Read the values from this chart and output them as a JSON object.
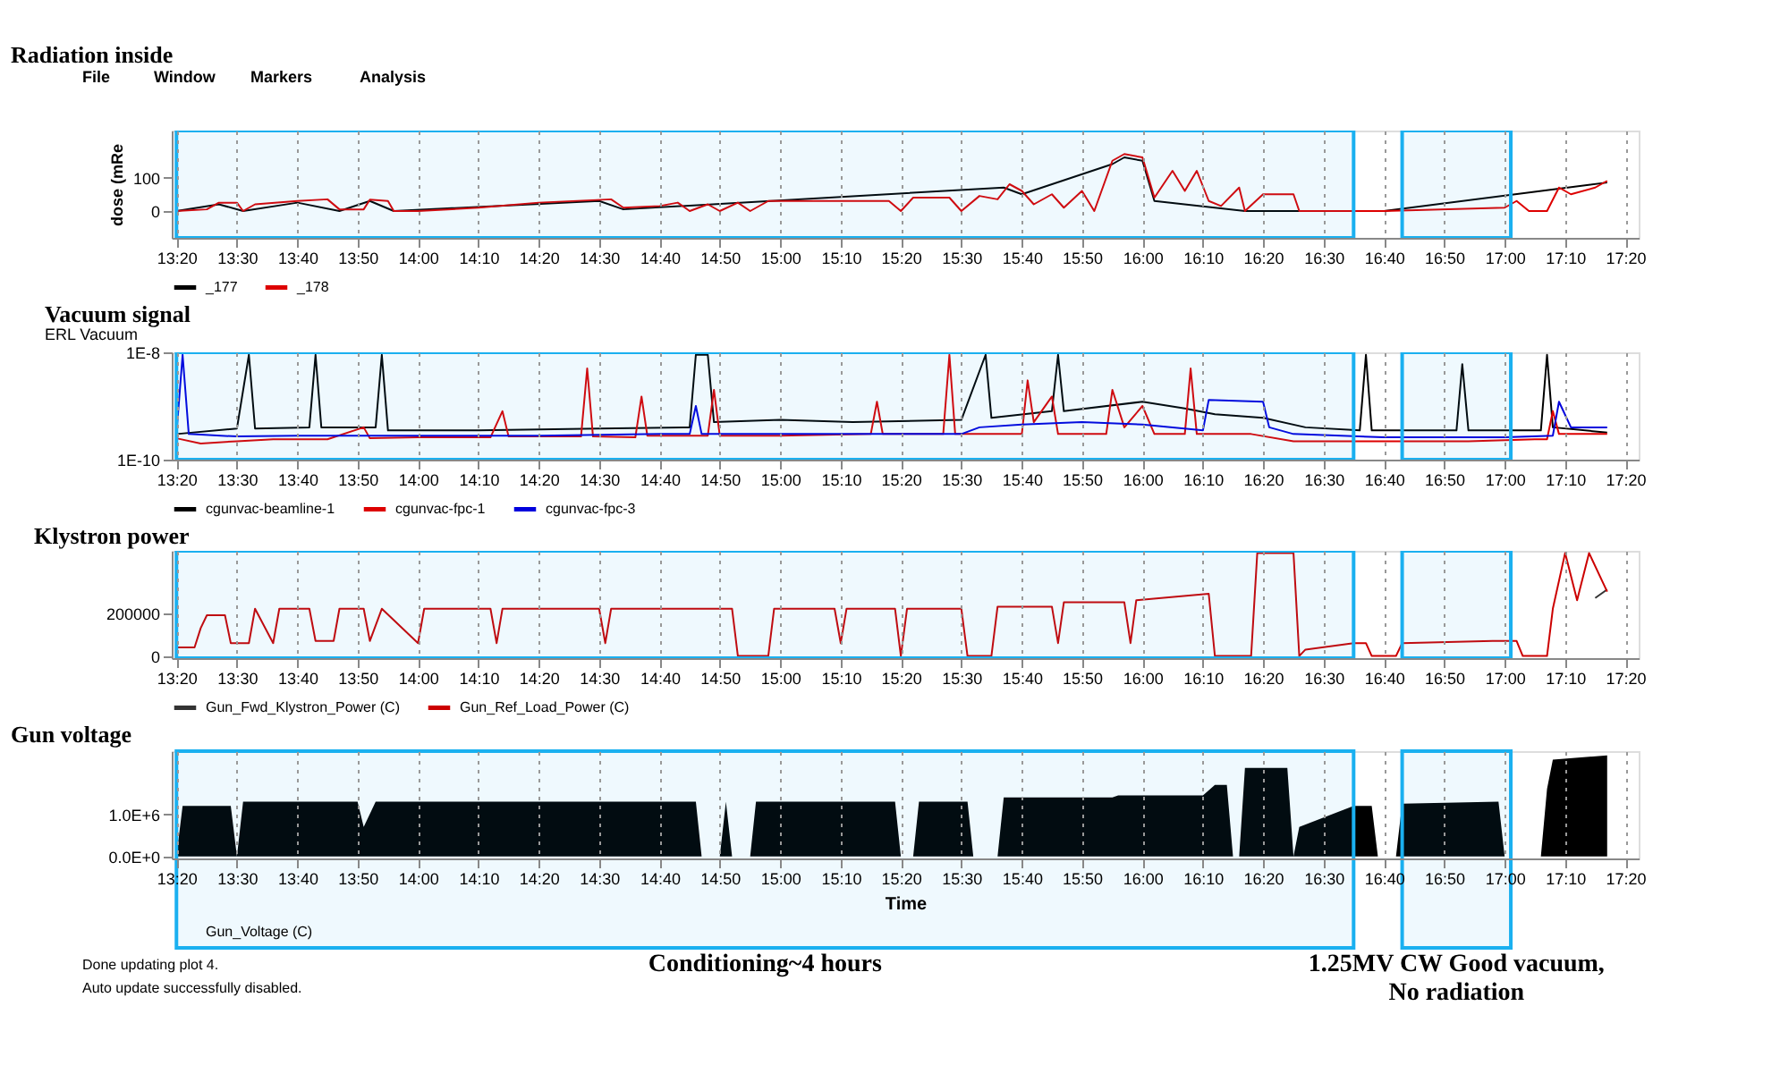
{
  "chart_data": [
    {
      "type": "line",
      "title": "Radiation inside",
      "ylabel": "dose (mRe",
      "xlim": [
        13.32,
        17.37
      ],
      "ylim": [
        -80,
        240
      ],
      "yticks": [
        0,
        100
      ],
      "grid": "x",
      "legend": "bottom",
      "annotations": [
        "File",
        "Window",
        "Markers",
        "Analysis"
      ],
      "bands": [
        {
          "axis": "x",
          "from": 13.333,
          "to": 16.583,
          "color": "#1ab0f0"
        },
        {
          "axis": "x",
          "from": 16.717,
          "to": 17.017,
          "color": "#1ab0f0"
        }
      ],
      "xticks": [
        {
          "value": 13.333,
          "label": "13:20"
        },
        {
          "value": 13.5,
          "label": "13:30"
        },
        {
          "value": 13.667,
          "label": "13:40"
        },
        {
          "value": 13.833,
          "label": "13:50"
        },
        {
          "value": 14,
          "label": "14:00"
        },
        {
          "value": 14.167,
          "label": "14:10"
        },
        {
          "value": 14.333,
          "label": "14:20"
        },
        {
          "value": 14.5,
          "label": "14:30"
        },
        {
          "value": 14.667,
          "label": "14:40"
        },
        {
          "value": 14.833,
          "label": "14:50"
        },
        {
          "value": 15,
          "label": "15:00"
        },
        {
          "value": 15.167,
          "label": "15:10"
        },
        {
          "value": 15.333,
          "label": "15:20"
        },
        {
          "value": 15.5,
          "label": "15:30"
        },
        {
          "value": 15.667,
          "label": "15:40"
        },
        {
          "value": 15.833,
          "label": "15:50"
        },
        {
          "value": 16,
          "label": "16:00"
        },
        {
          "value": 16.167,
          "label": "16:10"
        },
        {
          "value": 16.333,
          "label": "16:20"
        },
        {
          "value": 16.5,
          "label": "16:30"
        },
        {
          "value": 16.667,
          "label": "16:40"
        },
        {
          "value": 16.833,
          "label": "16:50"
        },
        {
          "value": 17,
          "label": "17:00"
        },
        {
          "value": 17.167,
          "label": "17:10"
        },
        {
          "value": 17.333,
          "label": "17:20"
        }
      ],
      "series": [
        {
          "name": "_177",
          "color": "#000000",
          "x": [
            13.333,
            13.45,
            13.517,
            13.667,
            13.783,
            13.867,
            13.933,
            14.5,
            14.567,
            15.617,
            15.667,
            15.917,
            15.95,
            16,
            16.033,
            16.283,
            16.667,
            17.283
          ],
          "values": [
            0,
            20,
            0,
            25,
            0,
            30,
            0,
            30,
            5,
            70,
            50,
            140,
            160,
            150,
            30,
            0,
            0,
            85
          ]
        },
        {
          "name": "_178",
          "color": "#dd0000",
          "x": [
            13.333,
            13.417,
            13.45,
            13.5,
            13.517,
            13.55,
            13.667,
            13.75,
            13.783,
            13.85,
            13.867,
            13.917,
            13.933,
            14,
            14.167,
            14.333,
            14.533,
            14.567,
            14.667,
            14.717,
            14.75,
            14.8,
            14.833,
            14.883,
            14.917,
            14.967,
            15.3,
            15.333,
            15.367,
            15.467,
            15.5,
            15.55,
            15.6,
            15.633,
            15.667,
            15.7,
            15.75,
            15.783,
            15.833,
            15.867,
            15.917,
            15.95,
            16,
            16.033,
            16.083,
            16.117,
            16.15,
            16.183,
            16.217,
            16.267,
            16.283,
            16.333,
            16.417,
            16.433,
            16.667,
            17,
            17.033,
            17.067,
            17.117,
            17.15,
            17.183,
            17.25,
            17.283
          ],
          "values": [
            0,
            5,
            25,
            25,
            0,
            20,
            30,
            35,
            5,
            5,
            34,
            30,
            0,
            0,
            10,
            25,
            35,
            10,
            15,
            25,
            0,
            20,
            0,
            25,
            0,
            30,
            30,
            0,
            40,
            40,
            0,
            45,
            35,
            80,
            60,
            20,
            50,
            10,
            60,
            0,
            150,
            170,
            160,
            40,
            120,
            60,
            120,
            30,
            15,
            70,
            0,
            50,
            50,
            0,
            0,
            10,
            30,
            0,
            0,
            70,
            50,
            70,
            90
          ]
        }
      ]
    },
    {
      "type": "line",
      "title": "Vacuum  signal",
      "subtitle": "ERL Vacuum",
      "log": true,
      "xlim": [
        13.32,
        17.37
      ],
      "ylim": [
        1e-10,
        1e-08
      ],
      "yticks": [
        {
          "value": 1e-08,
          "label": "1E-8"
        },
        {
          "value": 1e-10,
          "label": "1E-10"
        }
      ],
      "grid": "x",
      "legend": "bottom",
      "bands": [
        {
          "axis": "x",
          "from": 13.333,
          "to": 16.583,
          "color": "#1ab0f0"
        },
        {
          "axis": "x",
          "from": 16.717,
          "to": 17.017,
          "color": "#1ab0f0"
        }
      ],
      "xticks": [
        {
          "value": 13.333,
          "label": "13:20"
        },
        {
          "value": 13.5,
          "label": "13:30"
        },
        {
          "value": 13.667,
          "label": "13:40"
        },
        {
          "value": 13.833,
          "label": "13:50"
        },
        {
          "value": 14,
          "label": "14:00"
        },
        {
          "value": 14.167,
          "label": "14:10"
        },
        {
          "value": 14.333,
          "label": "14:20"
        },
        {
          "value": 14.5,
          "label": "14:30"
        },
        {
          "value": 14.667,
          "label": "14:40"
        },
        {
          "value": 14.833,
          "label": "14:50"
        },
        {
          "value": 15,
          "label": "15:00"
        },
        {
          "value": 15.167,
          "label": "15:10"
        },
        {
          "value": 15.333,
          "label": "15:20"
        },
        {
          "value": 15.5,
          "label": "15:30"
        },
        {
          "value": 15.667,
          "label": "15:40"
        },
        {
          "value": 15.833,
          "label": "15:50"
        },
        {
          "value": 16,
          "label": "16:00"
        },
        {
          "value": 16.167,
          "label": "16:10"
        },
        {
          "value": 16.333,
          "label": "16:20"
        },
        {
          "value": 16.5,
          "label": "16:30"
        },
        {
          "value": 16.667,
          "label": "16:40"
        },
        {
          "value": 16.833,
          "label": "16:50"
        },
        {
          "value": 17,
          "label": "17:00"
        },
        {
          "value": 17.167,
          "label": "17:10"
        },
        {
          "value": 17.333,
          "label": "17:20"
        }
      ],
      "series": [
        {
          "name": "cgunvac-beamline-1",
          "color": "#000000",
          "x": [
            13.333,
            13.5,
            13.533,
            13.55,
            13.7,
            13.717,
            13.733,
            13.883,
            13.9,
            13.917,
            14.167,
            14.5,
            14.75,
            14.767,
            14.8,
            14.817,
            15,
            15.2,
            15.5,
            15.567,
            15.583,
            15.75,
            15.767,
            15.783,
            16,
            16.117,
            16.2,
            16.333,
            16.45,
            16.6,
            16.617,
            16.633,
            16.867,
            16.883,
            16.9,
            17.1,
            17.117,
            17.133,
            17.283
          ],
          "values": [
            3e-10,
            3.8e-10,
            9e-09,
            3.8e-10,
            4e-10,
            9e-09,
            4e-10,
            4e-10,
            9e-09,
            3.5e-10,
            3.5e-10,
            3.8e-10,
            4e-10,
            9e-09,
            9e-09,
            5e-10,
            5.5e-10,
            5e-10,
            5.5e-10,
            9e-09,
            6e-10,
            8e-10,
            9e-09,
            8e-10,
            1.2e-09,
            9e-10,
            7e-10,
            6e-10,
            4e-10,
            3.5e-10,
            9e-09,
            3.5e-10,
            3.5e-10,
            6e-09,
            3.5e-10,
            3.5e-10,
            9e-09,
            4e-10,
            3.2e-10
          ]
        },
        {
          "name": "cgunvac-fpc-1",
          "color": "#dd0000",
          "x": [
            13.333,
            13.4,
            13.5,
            13.6,
            13.75,
            13.85,
            13.867,
            14,
            14.2,
            14.233,
            14.25,
            14.45,
            14.467,
            14.483,
            14.6,
            14.617,
            14.633,
            14.8,
            14.817,
            14.833,
            15,
            15.25,
            15.267,
            15.283,
            15.45,
            15.467,
            15.483,
            15.667,
            15.683,
            15.7,
            15.75,
            15.767,
            15.9,
            15.917,
            15.95,
            16,
            16.033,
            16.117,
            16.133,
            16.15,
            16.3,
            16.417,
            16.667,
            16.9,
            17.083,
            17.117,
            17.133,
            17.15,
            17.283
          ],
          "values": [
            2.5e-10,
            2e-10,
            2.2e-10,
            2.4e-10,
            2.4e-10,
            4e-10,
            2.5e-10,
            2.6e-10,
            2.6e-10,
            8e-10,
            2.7e-10,
            2.7e-10,
            5e-09,
            2.7e-10,
            2.6e-10,
            1.5e-09,
            2.8e-10,
            2.8e-10,
            2e-09,
            2.8e-10,
            2.8e-10,
            3e-10,
            1.2e-09,
            3e-10,
            3e-10,
            9e-09,
            3e-10,
            3e-10,
            3e-09,
            5e-10,
            1.5e-09,
            3e-10,
            3e-10,
            2e-09,
            4e-10,
            1e-09,
            3e-10,
            3e-10,
            5e-09,
            3e-10,
            3e-10,
            2.2e-10,
            2.2e-10,
            2.2e-10,
            2.4e-10,
            2.4e-10,
            8e-10,
            3e-10,
            3e-10
          ]
        },
        {
          "name": "cgunvac-fpc-3",
          "color": "#0000dd",
          "x": [
            13.333,
            13.35,
            13.367,
            13.5,
            13.667,
            13.833,
            14,
            14.333,
            14.667,
            14.75,
            14.767,
            14.783,
            15,
            15.333,
            15.5,
            15.55,
            15.667,
            15.833,
            16,
            16.167,
            16.183,
            16.333,
            16.35,
            16.417,
            16.667,
            17,
            17.133,
            17.15,
            17.183,
            17.283
          ],
          "values": [
            3e-10,
            9e-09,
            3e-10,
            2.7e-10,
            2.8e-10,
            2.8e-10,
            2.8e-10,
            2.8e-10,
            3e-10,
            3e-10,
            1e-09,
            3e-10,
            3e-10,
            3e-10,
            3e-10,
            4e-10,
            4.5e-10,
            5e-10,
            4.5e-10,
            3.5e-10,
            1.3e-09,
            1.2e-09,
            4e-10,
            3e-10,
            2.6e-10,
            2.6e-10,
            2.8e-10,
            1.2e-09,
            4e-10,
            4e-10
          ]
        }
      ]
    },
    {
      "type": "line",
      "title": "Klystron power",
      "xlim": [
        13.32,
        17.37
      ],
      "ylim": [
        -10000,
        490000
      ],
      "yticks": [
        0,
        200000
      ],
      "grid": "x",
      "legend": "bottom",
      "bands": [
        {
          "axis": "x",
          "from": 13.333,
          "to": 16.583,
          "color": "#1ab0f0"
        },
        {
          "axis": "x",
          "from": 16.717,
          "to": 17.017,
          "color": "#1ab0f0"
        }
      ],
      "xticks": [
        {
          "value": 13.333,
          "label": "13:20"
        },
        {
          "value": 13.5,
          "label": "13:30"
        },
        {
          "value": 13.667,
          "label": "13:40"
        },
        {
          "value": 13.833,
          "label": "13:50"
        },
        {
          "value": 14,
          "label": "14:00"
        },
        {
          "value": 14.167,
          "label": "14:10"
        },
        {
          "value": 14.333,
          "label": "14:20"
        },
        {
          "value": 14.5,
          "label": "14:30"
        },
        {
          "value": 14.667,
          "label": "14:40"
        },
        {
          "value": 14.833,
          "label": "14:50"
        },
        {
          "value": 15,
          "label": "15:00"
        },
        {
          "value": 15.167,
          "label": "15:10"
        },
        {
          "value": 15.333,
          "label": "15:20"
        },
        {
          "value": 15.5,
          "label": "15:30"
        },
        {
          "value": 15.667,
          "label": "15:40"
        },
        {
          "value": 15.833,
          "label": "15:50"
        },
        {
          "value": 16,
          "label": "16:00"
        },
        {
          "value": 16.167,
          "label": "16:10"
        },
        {
          "value": 16.333,
          "label": "16:20"
        },
        {
          "value": 16.5,
          "label": "16:30"
        },
        {
          "value": 16.667,
          "label": "16:40"
        },
        {
          "value": 16.833,
          "label": "16:50"
        },
        {
          "value": 17,
          "label": "17:00"
        },
        {
          "value": 17.167,
          "label": "17:10"
        },
        {
          "value": 17.333,
          "label": "17:20"
        }
      ],
      "series": [
        {
          "name": "Gun_Fwd_Klystron_Power (C)",
          "color": "#333333",
          "x": [
            17.25,
            17.283
          ],
          "values": [
            270000,
            310000
          ]
        },
        {
          "name": "Gun_Ref_Load_Power (C)",
          "color": "#cc0000",
          "x": [
            13.333,
            13.383,
            13.4,
            13.417,
            13.467,
            13.483,
            13.533,
            13.55,
            13.6,
            13.617,
            13.7,
            13.717,
            13.767,
            13.783,
            13.85,
            13.867,
            13.9,
            14,
            14.017,
            14.2,
            14.217,
            14.233,
            14.5,
            14.517,
            14.533,
            14.867,
            14.883,
            14.967,
            14.983,
            15.15,
            15.167,
            15.183,
            15.317,
            15.333,
            15.35,
            15.5,
            15.517,
            15.583,
            15.6,
            15.75,
            15.767,
            15.783,
            15.95,
            15.967,
            15.983,
            16.183,
            16.2,
            16.3,
            16.317,
            16.417,
            16.433,
            16.45,
            16.583,
            16.617,
            16.633,
            16.7,
            16.717,
            16.967,
            17.033,
            17.05,
            17.117,
            17.133,
            17.167,
            17.2,
            17.233,
            17.283
          ],
          "values": [
            40000,
            40000,
            130000,
            190000,
            190000,
            60000,
            60000,
            220000,
            60000,
            220000,
            220000,
            70000,
            70000,
            220000,
            220000,
            70000,
            220000,
            60000,
            220000,
            220000,
            60000,
            220000,
            220000,
            60000,
            220000,
            220000,
            0,
            0,
            220000,
            220000,
            60000,
            220000,
            220000,
            0,
            220000,
            220000,
            0,
            0,
            230000,
            230000,
            60000,
            250000,
            250000,
            60000,
            260000,
            290000,
            0,
            0,
            480000,
            480000,
            0,
            30000,
            60000,
            60000,
            0,
            0,
            60000,
            70000,
            70000,
            0,
            0,
            220000,
            480000,
            260000,
            480000,
            300000
          ]
        }
      ]
    },
    {
      "type": "area",
      "title": "Gun voltage",
      "xlabel": "Time",
      "xlim": [
        13.32,
        17.37
      ],
      "ylim": [
        -50000,
        2500000
      ],
      "yticks": [
        {
          "value": 0,
          "label": "0.0E+0"
        },
        {
          "value": 1000000,
          "label": "1.0E+6"
        }
      ],
      "grid": "x",
      "legend": "bottom",
      "annotations": [
        "Done updating plot 4.",
        "Auto update successfully disabled."
      ],
      "bands": [
        {
          "axis": "x",
          "from": 13.333,
          "to": 16.583,
          "color": "#1ab0f0",
          "label": "Conditioning~4 hours"
        },
        {
          "axis": "x",
          "from": 16.717,
          "to": 17.017,
          "color": "#1ab0f0",
          "label": "1.25MV CW Good vacuum,\nNo radiation"
        }
      ],
      "xticks": [
        {
          "value": 13.333,
          "label": "13:20"
        },
        {
          "value": 13.5,
          "label": "13:30"
        },
        {
          "value": 13.667,
          "label": "13:40"
        },
        {
          "value": 13.833,
          "label": "13:50"
        },
        {
          "value": 14,
          "label": "14:00"
        },
        {
          "value": 14.167,
          "label": "14:10"
        },
        {
          "value": 14.333,
          "label": "14:20"
        },
        {
          "value": 14.5,
          "label": "14:30"
        },
        {
          "value": 14.667,
          "label": "14:40"
        },
        {
          "value": 14.833,
          "label": "14:50"
        },
        {
          "value": 15,
          "label": "15:00"
        },
        {
          "value": 15.167,
          "label": "15:10"
        },
        {
          "value": 15.333,
          "label": "15:20"
        },
        {
          "value": 15.5,
          "label": "15:30"
        },
        {
          "value": 15.667,
          "label": "15:40"
        },
        {
          "value": 15.833,
          "label": "15:50"
        },
        {
          "value": 16,
          "label": "16:00"
        },
        {
          "value": 16.167,
          "label": "16:10"
        },
        {
          "value": 16.333,
          "label": "16:20"
        },
        {
          "value": 16.5,
          "label": "16:30"
        },
        {
          "value": 16.667,
          "label": "16:40"
        },
        {
          "value": 16.833,
          "label": "16:50"
        },
        {
          "value": 17,
          "label": "17:00"
        },
        {
          "value": 17.167,
          "label": "17:10"
        },
        {
          "value": 17.333,
          "label": "17:20"
        }
      ],
      "series": [
        {
          "name": "Gun_Voltage (C)",
          "color": "#000000",
          "x": [
            13.333,
            13.35,
            13.483,
            13.5,
            13.517,
            13.833,
            13.85,
            13.883,
            14.767,
            14.783,
            14.833,
            14.85,
            14.867,
            14.917,
            14.933,
            15.317,
            15.333,
            15.367,
            15.383,
            15.517,
            15.533,
            15.6,
            15.617,
            15.917,
            15.933,
            16.167,
            16.2,
            16.233,
            16.25,
            16.267,
            16.283,
            16.4,
            16.417,
            16.433,
            16.583,
            16.633,
            16.65,
            16.7,
            16.717,
            16.983,
            17,
            17.1,
            17.117,
            17.133,
            17.283
          ],
          "values": [
            0,
            1200000,
            1200000,
            0,
            1300000,
            1300000,
            700000,
            1300000,
            1300000,
            0,
            0,
            1300000,
            0,
            0,
            1300000,
            1300000,
            0,
            0,
            1300000,
            1300000,
            0,
            0,
            1400000,
            1400000,
            1450000,
            1450000,
            1700000,
            1700000,
            0,
            0,
            2100000,
            2100000,
            0,
            700000,
            1200000,
            1200000,
            0,
            0,
            1250000,
            1300000,
            0,
            0,
            1600000,
            2300000,
            2400000
          ]
        }
      ]
    }
  ]
}
